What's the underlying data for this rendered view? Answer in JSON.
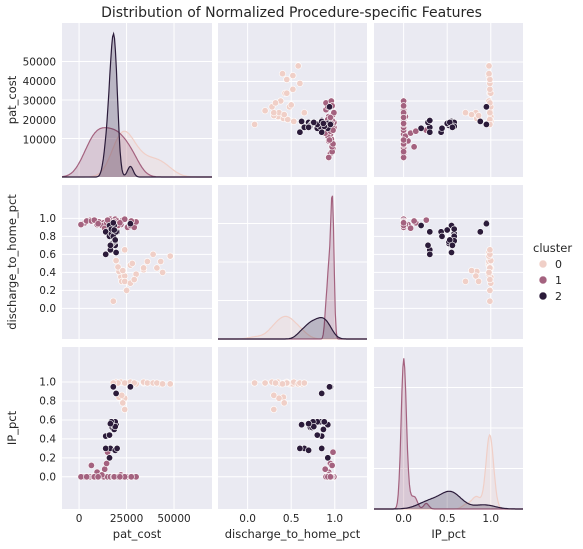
{
  "chart_data": {
    "type": "scatter",
    "title": "Distribution of Normalized Procedure-specific Features",
    "variables": [
      "pat_cost",
      "discharge_to_home_pct",
      "IP_pct"
    ],
    "axis_labels": {
      "x": [
        "pat_cost",
        "discharge_to_home_pct",
        "IP_pct"
      ],
      "y": [
        "pat_cost",
        "discharge_to_home_pct",
        "IP_pct"
      ]
    },
    "ranges": {
      "pat_cost": [
        -9000,
        70000
      ],
      "discharge_to_home_pct": [
        -0.34,
        1.37
      ],
      "IP_pct": [
        -0.34,
        1.37
      ]
    },
    "ticks": {
      "pat_cost_x": [
        0,
        25000,
        50000
      ],
      "pat_cost_y": [
        10000,
        20000,
        30000,
        40000,
        50000
      ],
      "frac_x": [
        0.0,
        0.5,
        1.0
      ],
      "frac_y": [
        0.0,
        0.2,
        0.4,
        0.6,
        0.8,
        1.0
      ]
    },
    "tick_labels": {
      "pat_cost_x": [
        "0",
        "25000",
        "50000"
      ],
      "pat_cost_y": [
        "10000",
        "20000",
        "30000",
        "40000",
        "50000"
      ],
      "frac_x": [
        "0.0",
        "0.5",
        "1.0"
      ],
      "frac_y": [
        "0.0",
        "0.2",
        "0.4",
        "0.6",
        "0.8",
        "1.0"
      ]
    },
    "legend": {
      "title": "cluster",
      "entries": [
        "0",
        "1",
        "2"
      ],
      "position": "right"
    },
    "colors": {
      "0": "#f0cfc7",
      "1": "#a4627f",
      "2": "#2b1b3a",
      "background": "#eaeaf2",
      "grid": "#ffffff"
    },
    "grid": true,
    "series": [
      {
        "name": "0",
        "points": [
          [
            22000,
            0.35,
            1.0
          ],
          [
            25000,
            0.2,
            0.99
          ],
          [
            27000,
            0.48,
            0.98
          ],
          [
            28000,
            0.5,
            0.98
          ],
          [
            34000,
            0.43,
            0.99
          ],
          [
            34000,
            0.45,
            1.0
          ],
          [
            30000,
            0.38,
            0.98
          ],
          [
            36000,
            0.52,
            0.99
          ],
          [
            43000,
            0.52,
            0.98
          ],
          [
            19000,
            0.62,
            0.98
          ],
          [
            19500,
            0.53,
            1.0
          ],
          [
            48000,
            0.58,
            0.98
          ],
          [
            39000,
            0.6,
            0.99
          ],
          [
            21000,
            0.41,
            0.84
          ],
          [
            24000,
            0.36,
            0.83
          ],
          [
            20500,
            0.46,
            0.99
          ],
          [
            23000,
            0.42,
            0.78
          ],
          [
            22500,
            0.3,
            0.86
          ],
          [
            18000,
            0.08,
            0.99
          ],
          [
            24000,
            0.3,
            0.71
          ],
          [
            41000,
            0.45,
            0.99
          ],
          [
            44000,
            0.4,
            0.98
          ],
          [
            24000,
            0.65,
            0.99
          ],
          [
            27000,
            0.28,
            1.0
          ],
          [
            29000,
            0.32,
            0.99
          ]
        ]
      },
      {
        "name": "1",
        "points": [
          [
            3000,
            0.95,
            0.0
          ],
          [
            6000,
            0.98,
            0.0
          ],
          [
            7500,
            0.97,
            0.0
          ],
          [
            9000,
            0.97,
            0.0
          ],
          [
            10500,
            0.96,
            0.0
          ],
          [
            13000,
            0.95,
            0.0
          ],
          [
            15000,
            0.97,
            0.0
          ],
          [
            16500,
            0.99,
            0.0
          ],
          [
            18000,
            0.98,
            0.0
          ],
          [
            19000,
            0.99,
            0.0
          ],
          [
            20000,
            0.97,
            0.0
          ],
          [
            9500,
            0.93,
            0.05
          ],
          [
            12000,
            0.92,
            0.02
          ],
          [
            13500,
            0.89,
            0.08
          ],
          [
            14500,
            0.95,
            0.14
          ],
          [
            15000,
            0.98,
            0.26
          ],
          [
            22000,
            0.93,
            0.02
          ],
          [
            23000,
            0.98,
            0.0
          ],
          [
            25500,
            0.9,
            0.0
          ],
          [
            27000,
            0.92,
            0.0
          ],
          [
            29000,
            0.9,
            0.0
          ],
          [
            30000,
            0.96,
            0.0
          ],
          [
            1000,
            0.93,
            0.0
          ],
          [
            4000,
            0.97,
            0.0
          ],
          [
            6500,
            0.97,
            0.12
          ],
          [
            8000,
            0.98,
            0.0
          ],
          [
            10000,
            0.94,
            0.0
          ],
          [
            20500,
            0.92,
            0.0
          ],
          [
            24000,
            0.99,
            0.0
          ],
          [
            27500,
            0.97,
            0.0
          ],
          [
            18500,
            0.96,
            0.0
          ],
          [
            21500,
            0.95,
            0.0
          ]
        ]
      },
      {
        "name": "2",
        "points": [
          [
            14000,
            0.85,
            0.43
          ],
          [
            16000,
            0.8,
            0.44
          ],
          [
            17000,
            0.83,
            0.58
          ],
          [
            18000,
            0.8,
            0.58
          ],
          [
            18500,
            0.92,
            0.55
          ],
          [
            19500,
            0.62,
            0.55
          ],
          [
            16500,
            0.65,
            0.3
          ],
          [
            19000,
            0.7,
            0.28
          ],
          [
            14000,
            0.6,
            0.3
          ],
          [
            17500,
            0.72,
            0.52
          ],
          [
            18500,
            0.74,
            0.52
          ],
          [
            20000,
            0.85,
            0.3
          ],
          [
            16000,
            0.92,
            0.2
          ],
          [
            18000,
            0.95,
            0.95
          ],
          [
            19000,
            0.75,
            0.58
          ],
          [
            27000,
            0.94,
            0.95
          ],
          [
            19500,
            0.85,
            0.88
          ],
          [
            17000,
            0.88,
            0.58
          ],
          [
            18500,
            0.87,
            0.5
          ],
          [
            19000,
            0.76,
            0.53
          ],
          [
            16500,
            0.7,
            0.56
          ]
        ]
      }
    ]
  }
}
